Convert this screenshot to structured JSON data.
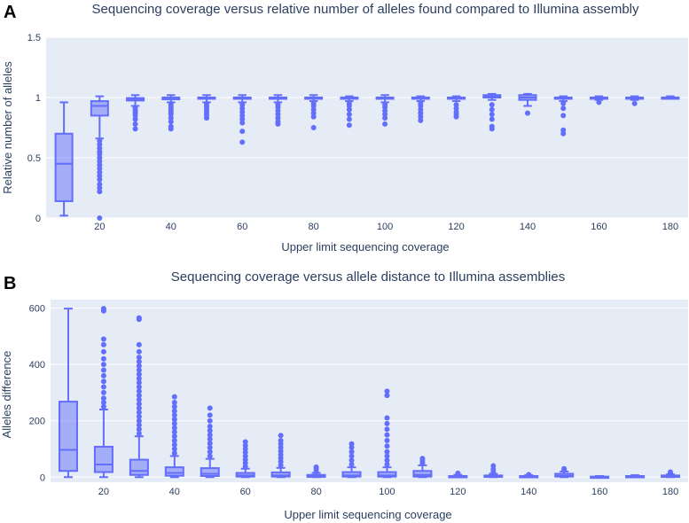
{
  "chart_data": [
    {
      "panel": "A",
      "type": "box",
      "title": "Sequencing coverage versus relative number of alleles found compared to Illumina assembly",
      "xlabel": "Upper limit sequencing coverage",
      "ylabel": "Relative number of alleles",
      "xlim": [
        5,
        185
      ],
      "ylim": [
        0,
        1.5
      ],
      "xticks": [
        20,
        40,
        60,
        80,
        100,
        120,
        140,
        160,
        180
      ],
      "yticks": [
        {
          "value": 0,
          "label": "0"
        },
        {
          "value": 0.5,
          "label": "0.5"
        },
        {
          "value": 1,
          "label": "1"
        },
        {
          "value": 1.5,
          "label": "1.5"
        }
      ],
      "color": "#636efa",
      "boxes": [
        {
          "x": 10,
          "min": 0.02,
          "q1": 0.14,
          "median": 0.45,
          "q3": 0.7,
          "max": 0.96,
          "outliers": []
        },
        {
          "x": 20,
          "min": 0.66,
          "q1": 0.85,
          "median": 0.93,
          "q3": 0.97,
          "max": 1.01,
          "outliers": [
            0.0,
            0.22,
            0.25,
            0.28,
            0.32,
            0.35,
            0.38,
            0.41,
            0.44,
            0.47,
            0.5,
            0.53,
            0.55,
            0.58,
            0.61,
            0.64
          ]
        },
        {
          "x": 30,
          "min": 0.93,
          "q1": 0.975,
          "median": 0.985,
          "q3": 0.995,
          "max": 1.02,
          "outliers": [
            0.74,
            0.78,
            0.82,
            0.85,
            0.87,
            0.89,
            0.91
          ]
        },
        {
          "x": 40,
          "min": 0.96,
          "q1": 0.985,
          "median": 0.992,
          "q3": 1.0,
          "max": 1.02,
          "outliers": [
            0.74,
            0.76,
            0.8,
            0.83,
            0.86,
            0.88,
            0.9,
            0.92,
            0.94
          ]
        },
        {
          "x": 50,
          "min": 0.96,
          "q1": 0.99,
          "median": 0.995,
          "q3": 1.0,
          "max": 1.02,
          "outliers": [
            0.83,
            0.85,
            0.87,
            0.89,
            0.91,
            0.93,
            0.95
          ]
        },
        {
          "x": 60,
          "min": 0.96,
          "q1": 0.99,
          "median": 0.995,
          "q3": 1.0,
          "max": 1.02,
          "outliers": [
            0.63,
            0.72,
            0.79,
            0.82,
            0.85,
            0.88,
            0.91,
            0.94
          ]
        },
        {
          "x": 70,
          "min": 0.96,
          "q1": 0.99,
          "median": 0.995,
          "q3": 1.0,
          "max": 1.02,
          "outliers": [
            0.78,
            0.8,
            0.83,
            0.86,
            0.89,
            0.92,
            0.94
          ]
        },
        {
          "x": 80,
          "min": 0.97,
          "q1": 0.99,
          "median": 0.996,
          "q3": 1.0,
          "max": 1.02,
          "outliers": [
            0.75,
            0.84,
            0.87,
            0.9,
            0.93,
            0.95
          ]
        },
        {
          "x": 90,
          "min": 0.97,
          "q1": 0.99,
          "median": 0.996,
          "q3": 1.0,
          "max": 1.01,
          "outliers": [
            0.77,
            0.82,
            0.86,
            0.9,
            0.93,
            0.95
          ]
        },
        {
          "x": 100,
          "min": 0.96,
          "q1": 0.99,
          "median": 0.996,
          "q3": 1.0,
          "max": 1.02,
          "outliers": [
            0.78,
            0.83,
            0.86,
            0.89,
            0.92,
            0.94
          ]
        },
        {
          "x": 110,
          "min": 0.97,
          "q1": 0.99,
          "median": 0.996,
          "q3": 1.0,
          "max": 1.01,
          "outliers": [
            0.81,
            0.84,
            0.87,
            0.9,
            0.93,
            0.95
          ]
        },
        {
          "x": 120,
          "min": 0.97,
          "q1": 0.99,
          "median": 0.995,
          "q3": 1.0,
          "max": 1.01,
          "outliers": [
            0.84,
            0.86,
            0.88,
            0.91,
            0.94
          ]
        },
        {
          "x": 130,
          "min": 0.98,
          "q1": 1.0,
          "median": 1.01,
          "q3": 1.02,
          "max": 1.03,
          "outliers": [
            0.74,
            0.76,
            0.82,
            0.86,
            0.9,
            0.94
          ]
        },
        {
          "x": 140,
          "min": 0.93,
          "q1": 0.98,
          "median": 1.0,
          "q3": 1.02,
          "max": 1.03,
          "outliers": [
            0.87
          ]
        },
        {
          "x": 150,
          "min": 0.97,
          "q1": 0.99,
          "median": 0.997,
          "q3": 1.0,
          "max": 1.01,
          "outliers": [
            0.7,
            0.73,
            0.85,
            0.91,
            0.95
          ]
        },
        {
          "x": 160,
          "min": 0.98,
          "q1": 0.99,
          "median": 0.997,
          "q3": 1.0,
          "max": 1.01,
          "outliers": [
            0.96
          ]
        },
        {
          "x": 170,
          "min": 0.98,
          "q1": 0.99,
          "median": 0.997,
          "q3": 1.0,
          "max": 1.01,
          "outliers": [
            0.95
          ]
        },
        {
          "x": 180,
          "min": 0.99,
          "q1": 0.993,
          "median": 0.998,
          "q3": 1.0,
          "max": 1.01,
          "outliers": []
        }
      ]
    },
    {
      "panel": "B",
      "type": "box",
      "title": "Sequencing coverage versus allele distance to Illumina assemblies",
      "xlabel": "Upper limit sequencing coverage",
      "ylabel": "Alleles difference",
      "xlim": [
        5,
        185
      ],
      "ylim": [
        -18,
        630
      ],
      "xticks": [
        20,
        40,
        60,
        80,
        100,
        120,
        140,
        160,
        180
      ],
      "yticks": [
        {
          "value": 0,
          "label": "0"
        },
        {
          "value": 200,
          "label": "200"
        },
        {
          "value": 400,
          "label": "400"
        },
        {
          "value": 600,
          "label": "600"
        }
      ],
      "color": "#636efa",
      "boxes": [
        {
          "x": 10,
          "min": 0,
          "q1": 22,
          "median": 97,
          "q3": 268,
          "max": 598,
          "outliers": []
        },
        {
          "x": 20,
          "min": 0,
          "q1": 18,
          "median": 45,
          "q3": 108,
          "max": 240,
          "outliers": [
            250,
            265,
            280,
            300,
            320,
            340,
            360,
            380,
            400,
            420,
            445,
            470,
            490,
            590,
            598
          ]
        },
        {
          "x": 30,
          "min": 0,
          "q1": 8,
          "median": 22,
          "q3": 62,
          "max": 145,
          "outliers": [
            155,
            170,
            185,
            200,
            215,
            230,
            245,
            260,
            275,
            290,
            305,
            320,
            335,
            350,
            365,
            380,
            395,
            410,
            425,
            445,
            470,
            560,
            565
          ]
        },
        {
          "x": 40,
          "min": 0,
          "q1": 5,
          "median": 15,
          "q3": 35,
          "max": 75,
          "outliers": [
            85,
            100,
            115,
            130,
            145,
            160,
            175,
            190,
            205,
            220,
            235,
            250,
            265,
            285
          ]
        },
        {
          "x": 50,
          "min": 0,
          "q1": 4,
          "median": 12,
          "q3": 32,
          "max": 65,
          "outliers": [
            75,
            90,
            105,
            120,
            135,
            150,
            165,
            180,
            200,
            220,
            245
          ]
        },
        {
          "x": 60,
          "min": 0,
          "q1": 2,
          "median": 6,
          "q3": 15,
          "max": 30,
          "outliers": [
            38,
            50,
            62,
            75,
            88,
            100,
            112,
            125
          ]
        },
        {
          "x": 70,
          "min": 0,
          "q1": 2,
          "median": 6,
          "q3": 17,
          "max": 33,
          "outliers": [
            42,
            55,
            68,
            80,
            92,
            105,
            118,
            130,
            148
          ]
        },
        {
          "x": 80,
          "min": 0,
          "q1": 1,
          "median": 3,
          "q3": 8,
          "max": 15,
          "outliers": [
            20,
            28,
            36
          ]
        },
        {
          "x": 90,
          "min": 0,
          "q1": 2,
          "median": 6,
          "q3": 18,
          "max": 35,
          "outliers": [
            45,
            60,
            75,
            90,
            105,
            118
          ]
        },
        {
          "x": 100,
          "min": 0,
          "q1": 2,
          "median": 6,
          "q3": 18,
          "max": 35,
          "outliers": [
            45,
            60,
            75,
            90,
            110,
            130,
            150,
            170,
            190,
            210,
            290,
            305
          ]
        },
        {
          "x": 110,
          "min": 0,
          "q1": 2,
          "median": 8,
          "q3": 22,
          "max": 42,
          "outliers": [
            50,
            58,
            66
          ]
        },
        {
          "x": 120,
          "min": 0,
          "q1": 1,
          "median": 2,
          "q3": 4,
          "max": 8,
          "outliers": [
            10,
            14
          ]
        },
        {
          "x": 130,
          "min": 0,
          "q1": 1,
          "median": 3,
          "q3": 6,
          "max": 12,
          "outliers": [
            18,
            28,
            40
          ]
        },
        {
          "x": 140,
          "min": 0,
          "q1": 1,
          "median": 2,
          "q3": 4,
          "max": 7,
          "outliers": [
            9
          ]
        },
        {
          "x": 150,
          "min": 0,
          "q1": 2,
          "median": 5,
          "q3": 12,
          "max": 20,
          "outliers": [
            25,
            30
          ]
        },
        {
          "x": 160,
          "min": 0,
          "q1": 0,
          "median": 1,
          "q3": 2,
          "max": 4,
          "outliers": []
        },
        {
          "x": 170,
          "min": 0,
          "q1": 1,
          "median": 2,
          "q3": 4,
          "max": 7,
          "outliers": []
        },
        {
          "x": 180,
          "min": 0,
          "q1": 1,
          "median": 3,
          "q3": 6,
          "max": 10,
          "outliers": [
            14,
            18
          ]
        }
      ]
    }
  ]
}
